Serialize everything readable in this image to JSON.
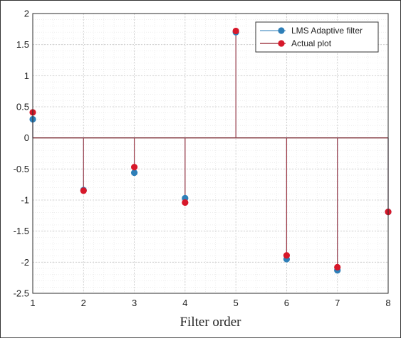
{
  "chart_data": {
    "type": "stem",
    "title": "",
    "xlabel": "Filter order",
    "ylabel": "",
    "xlim": [
      1,
      8
    ],
    "ylim": [
      -2.5,
      2
    ],
    "xticks": [
      1,
      2,
      3,
      4,
      5,
      6,
      7,
      8
    ],
    "yticks": [
      2,
      1.5,
      1,
      0.5,
      0,
      -0.5,
      -1,
      -1.5,
      -2,
      -2.5
    ],
    "ytick_labels": [
      "2",
      "1.5",
      "1",
      "0.5",
      "0",
      "-0.5",
      "-1",
      "-1.5",
      "-2",
      "-2.5"
    ],
    "grid": true,
    "minor_grid": true,
    "legend_position": "top-right",
    "x": [
      1,
      2,
      3,
      4,
      5,
      6,
      7,
      8
    ],
    "series": [
      {
        "name": "LMS Adaptive filter",
        "color": "#2e7fb8",
        "stem_color": "#6fa6cf",
        "values": [
          0.3,
          -0.84,
          -0.56,
          -0.97,
          1.7,
          -1.95,
          -2.13,
          -1.19
        ]
      },
      {
        "name": "Actual plot",
        "color": "#d7182a",
        "stem_color": "#a3414b",
        "values": [
          0.41,
          -0.85,
          -0.47,
          -1.04,
          1.72,
          -1.89,
          -2.08,
          -1.19
        ]
      }
    ]
  }
}
